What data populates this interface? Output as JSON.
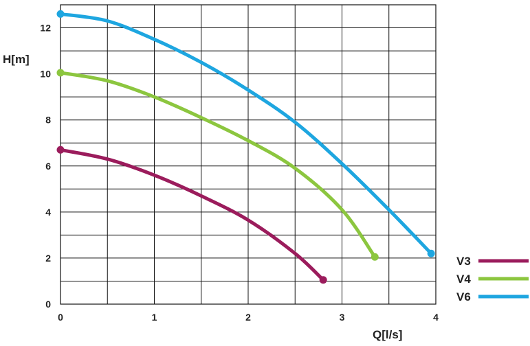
{
  "chart_data": {
    "type": "line",
    "xlabel": "Q[l/s]",
    "ylabel": "H[m]",
    "xlim": [
      0,
      4
    ],
    "ylim": [
      0,
      13
    ],
    "grid": true,
    "legend_position": "bottom-right",
    "x_ticks": [
      "0",
      "1",
      "2",
      "3",
      "4"
    ],
    "y_ticks": [
      "0",
      "2",
      "4",
      "6",
      "8",
      "10",
      "12"
    ],
    "series": [
      {
        "name": "V3",
        "color": "#9b1c5c",
        "points": [
          [
            0,
            6.7
          ],
          [
            0.5,
            6.3
          ],
          [
            1,
            5.6
          ],
          [
            1.5,
            4.7
          ],
          [
            2,
            3.65
          ],
          [
            2.5,
            2.2
          ],
          [
            2.8,
            1.05
          ]
        ]
      },
      {
        "name": "V4",
        "color": "#8cc63f",
        "points": [
          [
            0,
            10.05
          ],
          [
            0.5,
            9.7
          ],
          [
            1,
            9.0
          ],
          [
            1.5,
            8.1
          ],
          [
            2,
            7.1
          ],
          [
            2.5,
            5.9
          ],
          [
            3,
            4.1
          ],
          [
            3.35,
            2.05
          ]
        ]
      },
      {
        "name": "V6",
        "color": "#1ea6e0",
        "points": [
          [
            0,
            12.6
          ],
          [
            0.5,
            12.3
          ],
          [
            1,
            11.5
          ],
          [
            1.5,
            10.5
          ],
          [
            2,
            9.3
          ],
          [
            2.5,
            7.9
          ],
          [
            3,
            6.1
          ],
          [
            3.5,
            4.1
          ],
          [
            3.95,
            2.2
          ]
        ]
      }
    ]
  }
}
